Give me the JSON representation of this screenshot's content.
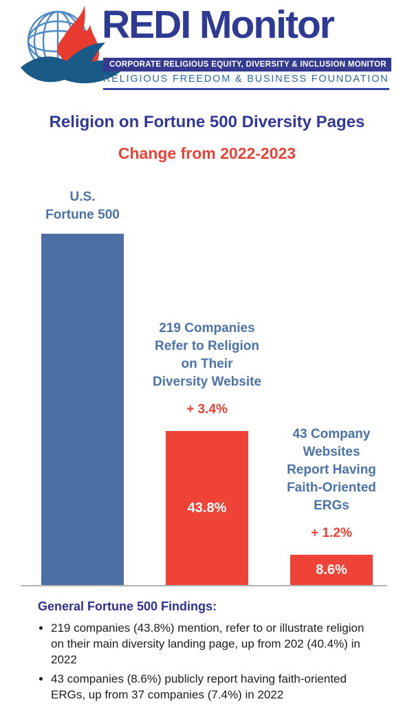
{
  "header": {
    "brand": "REDI Monitor",
    "banner": "CORPORATE RELIGIOUS EQUITY, DIVERSITY & INCLUSION MONITOR",
    "foundation": "RELIGIOUS FREEDOM & BUSINESS FOUNDATION",
    "logo_icons": [
      "globe-icon",
      "flame-icon",
      "hand-icon"
    ]
  },
  "chart_data": {
    "type": "bar",
    "title": "Religion on Fortune 500 Diversity Pages",
    "subtitle": "Change from 2022-2023",
    "categories": [
      "U.S. Fortune 500",
      "219 Companies Refer to Religion on Their Diversity Website",
      "43 Company Websites Report Having Faith-Oriented ERGs"
    ],
    "values": [
      100,
      43.8,
      8.6
    ],
    "ylim": [
      0,
      100
    ],
    "grid": false,
    "legend": "none",
    "bars": [
      {
        "label_lines": [
          "U.S.",
          "Fortune 500"
        ],
        "value": 100,
        "value_label": "",
        "change_label": "",
        "color": "#4c70a4"
      },
      {
        "label_lines": [
          "219 Companies",
          "Refer to Religion",
          "on Their",
          "Diversity Website"
        ],
        "value": 43.8,
        "value_label": "43.8%",
        "change_label": "+ 3.4%",
        "color": "#ef4338"
      },
      {
        "label_lines": [
          "43 Company",
          "Websites",
          "Report Having",
          "Faith-Oriented",
          "ERGs"
        ],
        "value": 8.6,
        "value_label": "8.6%",
        "change_label": "+ 1.2%",
        "color": "#ef4338"
      }
    ]
  },
  "findings": {
    "heading": "General Fortune 500 Findings:",
    "bullets": [
      "219 companies (43.8%) mention, refer to or illustrate religion on their main diversity landing page, up from 202 (40.4%) in 2022",
      "43 companies (8.6%) publicly report having faith-oriented ERGs, up from 37 companies (7.4%) in 2022"
    ]
  },
  "colors": {
    "brand_blue": "#2e3a94",
    "banner_bg": "#333a90",
    "foundation_blue": "#2b69a3",
    "title_blue": "#31389b",
    "accent_red": "#ee4136",
    "bar_blue": "#4c70a4",
    "bar_red": "#ef4338",
    "label_blue": "#4a72ab",
    "baseline_gray": "#b3b3b3",
    "body_text": "#1c1c1c"
  }
}
